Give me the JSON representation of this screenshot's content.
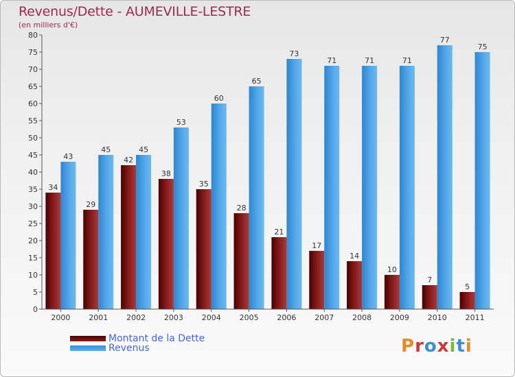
{
  "header": {
    "title": "Revenus/Dette - AUMEVILLE-LESTRE",
    "subtitle": "(en milliers d'€)"
  },
  "legend": {
    "debt_label": "Montant de la Dette",
    "revenue_label": "Revenus"
  },
  "logo": {
    "text": "Proxiti",
    "colors": [
      "#e88a2a",
      "#c73a3a",
      "#3a8ed6",
      "#c73a3a",
      "#7ab83a",
      "#3a8ed6",
      "#e88a2a"
    ]
  },
  "colors": {
    "debt": "#7a1414",
    "revenue": "#4aa0e6"
  },
  "chart_data": {
    "type": "bar",
    "title": "Revenus/Dette - AUMEVILLE-LESTRE",
    "subtitle": "(en milliers d'€)",
    "categories": [
      "2000",
      "2001",
      "2002",
      "2003",
      "2004",
      "2005",
      "2006",
      "2007",
      "2008",
      "2009",
      "2010",
      "2011"
    ],
    "series": [
      {
        "name": "Montant de la Dette",
        "values": [
          34,
          29,
          42,
          38,
          35,
          28,
          21,
          17,
          14,
          10,
          7,
          5
        ]
      },
      {
        "name": "Revenus",
        "values": [
          43,
          45,
          45,
          53,
          60,
          65,
          73,
          71,
          71,
          71,
          77,
          75
        ]
      }
    ],
    "ylim": [
      0,
      80
    ],
    "yticks": [
      0,
      5,
      10,
      15,
      20,
      25,
      30,
      35,
      40,
      45,
      50,
      55,
      60,
      65,
      70,
      75,
      80
    ],
    "grid": false,
    "legend_position": "bottom-left"
  }
}
